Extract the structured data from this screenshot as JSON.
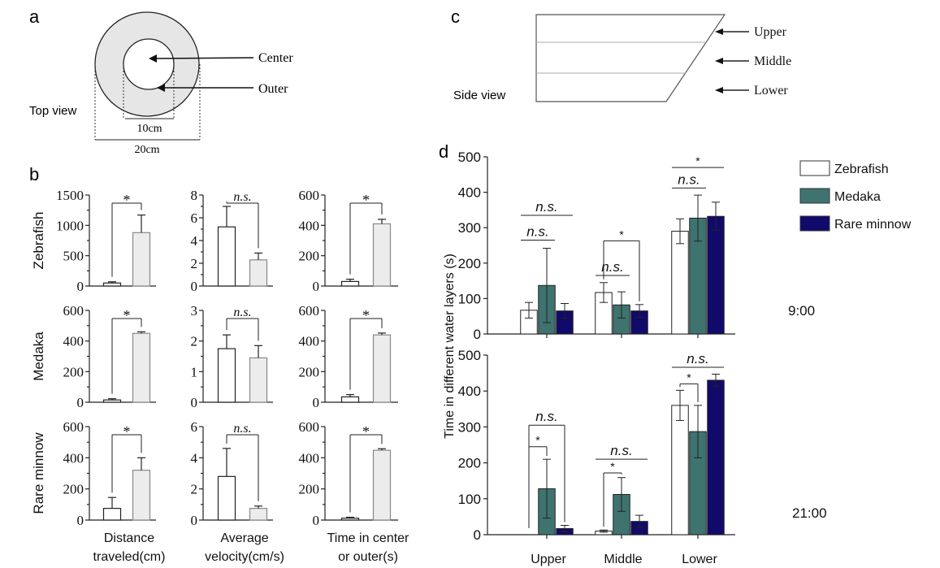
{
  "panel_labels": {
    "a": "a",
    "b": "b",
    "c": "c",
    "d": "d"
  },
  "panel_a": {
    "view_label": "Top view",
    "center_label": "Center",
    "outer_label": "Outer",
    "inner_diameter": "10cm",
    "outer_diameter": "20cm"
  },
  "panel_c": {
    "view_label": "Side view",
    "layers": [
      "Upper",
      "Middle",
      "Lower"
    ]
  },
  "colors": {
    "zebrafish": "#ffffff",
    "outer_bar": "#ececec",
    "medaka": "#3e7370",
    "rare_minnow": "#120a6a"
  },
  "chart_data": [
    {
      "type": "bar",
      "panel": "b",
      "row_labels": [
        "Zebrafish",
        "Medaka",
        "Rare minnow"
      ],
      "column_labels": [
        [
          "Distance",
          "traveled(cm)"
        ],
        [
          "Average",
          "velocity(cm/s)"
        ],
        [
          "Time in center",
          "or outer(s)"
        ]
      ],
      "categories": [
        "Center",
        "Outer"
      ],
      "rows": [
        [
          {
            "ylim": [
              0,
              1500
            ],
            "ticks": [
              "0",
              "500",
              "1000",
              "1500"
            ],
            "values": [
              50,
              880
            ],
            "errors": [
              20,
              290
            ],
            "significance": "*"
          },
          {
            "ylim": [
              0,
              8
            ],
            "ticks": [
              "0",
              "2",
              "4",
              "6",
              "8"
            ],
            "values": [
              5.2,
              2.3
            ],
            "errors": [
              1.8,
              0.6
            ],
            "significance": "n.s."
          },
          {
            "ylim": [
              0,
              600
            ],
            "ticks": [
              "0",
              "200",
              "400",
              "600"
            ],
            "values": [
              30,
              410
            ],
            "errors": [
              15,
              30
            ],
            "significance": "*"
          }
        ],
        [
          {
            "ylim": [
              0,
              600
            ],
            "ticks": [
              "0",
              "200",
              "400",
              "600"
            ],
            "values": [
              15,
              450
            ],
            "errors": [
              8,
              10
            ],
            "significance": "*"
          },
          {
            "ylim": [
              0,
              3
            ],
            "ticks": [
              "0",
              "1",
              "2",
              "3"
            ],
            "values": [
              1.75,
              1.45
            ],
            "errors": [
              0.45,
              0.4
            ],
            "significance": "n.s."
          },
          {
            "ylim": [
              0,
              600
            ],
            "ticks": [
              "0",
              "200",
              "400",
              "600"
            ],
            "values": [
              35,
              440
            ],
            "errors": [
              15,
              12
            ],
            "significance": "*"
          }
        ],
        [
          {
            "ylim": [
              0,
              600
            ],
            "ticks": [
              "0",
              "200",
              "400",
              "600"
            ],
            "values": [
              75,
              320
            ],
            "errors": [
              70,
              80
            ],
            "significance": "*"
          },
          {
            "ylim": [
              0,
              6
            ],
            "ticks": [
              "0",
              "2",
              "4",
              "6"
            ],
            "values": [
              2.8,
              0.75
            ],
            "errors": [
              1.8,
              0.15
            ],
            "significance": "n.s."
          },
          {
            "ylim": [
              0,
              600
            ],
            "ticks": [
              "0",
              "200",
              "400",
              "600"
            ],
            "values": [
              12,
              448
            ],
            "errors": [
              6,
              10
            ],
            "significance": "*"
          }
        ]
      ]
    },
    {
      "type": "bar",
      "panel": "d",
      "ylabel": "Time in different water layers (s)",
      "categories": [
        "Upper",
        "Middle",
        "Lower"
      ],
      "ylim": [
        0,
        500
      ],
      "ticks": [
        "0",
        "100",
        "200",
        "300",
        "400",
        "500"
      ],
      "legend": [
        "Zebrafish",
        "Medaka",
        "Rare minnow"
      ],
      "legend_position": "right",
      "subcharts": [
        {
          "time_label": "9:00",
          "series": [
            {
              "name": "Zebrafish",
              "values": [
                67,
                117,
                290
              ],
              "errors": [
                22,
                28,
                35
              ]
            },
            {
              "name": "Medaka",
              "values": [
                137,
                82,
                327
              ],
              "errors": [
                105,
                37,
                65
              ]
            },
            {
              "name": "Rare minnow",
              "values": [
                65,
                65,
                332
              ],
              "errors": [
                21,
                18,
                40
              ]
            }
          ],
          "significance": [
            [
              "n.s.",
              "n.s."
            ],
            [
              "*",
              "n.s."
            ],
            [
              "*",
              "n.s."
            ]
          ]
        },
        {
          "time_label": "21:00",
          "series": [
            {
              "name": "Zebrafish",
              "values": [
                0,
                10,
                360
              ],
              "errors": [
                0,
                3,
                42
              ]
            },
            {
              "name": "Medaka",
              "values": [
                128,
                112,
                287
              ],
              "errors": [
                82,
                47,
                73
              ]
            },
            {
              "name": "Rare minnow",
              "values": [
                17,
                37,
                430
              ],
              "errors": [
                9,
                17,
                17
              ]
            }
          ],
          "significance": [
            [
              "n.s.",
              "*"
            ],
            [
              "n.s.",
              "*"
            ],
            [
              "n.s.",
              "*"
            ]
          ]
        }
      ]
    }
  ]
}
